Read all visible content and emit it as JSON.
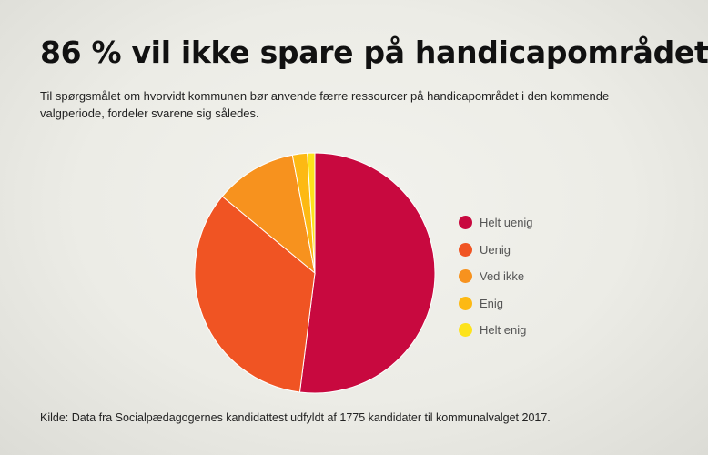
{
  "chart_data": {
    "type": "pie",
    "title": "86 % vil ikke spare på handicapområdet",
    "subtitle": "Til spørgsmålet om hvorvidt kommunen bør anvende færre ressourcer på handicapområdet i den kommende valgperiode, fordeler svarene sig således.",
    "source": "Kilde: Data fra Socialpædagogernes kandidattest udfyldt af 1775 kandidater til kommunalvalget 2017.",
    "legend_position": "right",
    "slices": [
      {
        "label": "Helt uenig",
        "value": 52,
        "color": "#c8093f"
      },
      {
        "label": "Uenig",
        "value": 34,
        "color": "#f05423"
      },
      {
        "label": "Ved ikke",
        "value": 11,
        "color": "#f7921e"
      },
      {
        "label": "Enig",
        "value": 2,
        "color": "#fdb913"
      },
      {
        "label": "Helt enig",
        "value": 1,
        "color": "#fde31b"
      }
    ]
  }
}
